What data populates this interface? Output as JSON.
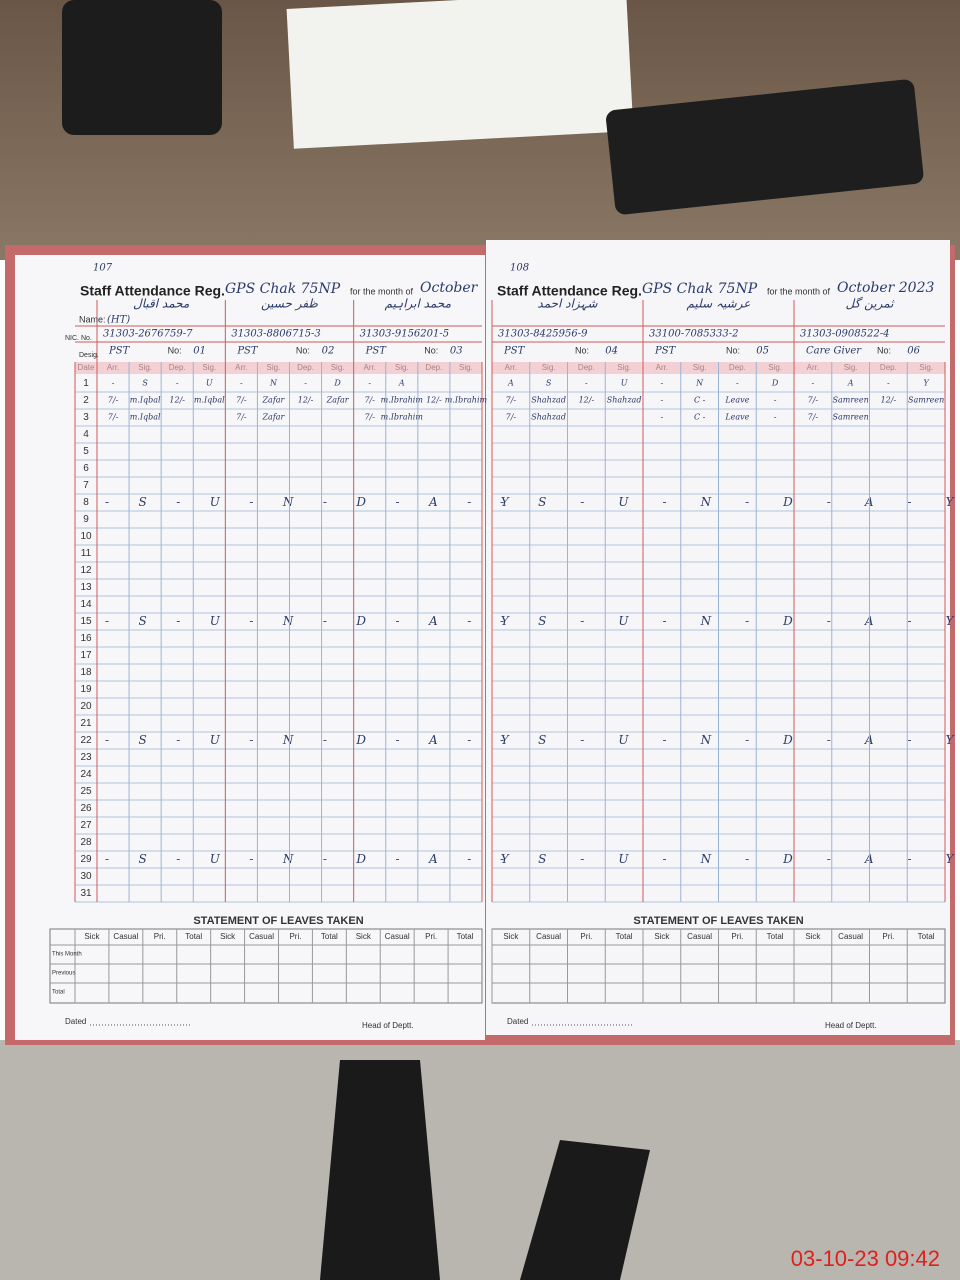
{
  "left_page": {
    "page_no": "107",
    "title": "Staff Attendance Reg.",
    "school": "GPS Chak 75NP",
    "month_label": "for the month of",
    "month": "October",
    "labels": {
      "name": "Name:",
      "nic": "NIC. No.",
      "desig": "Desig.",
      "no": "No:",
      "date": "Date",
      "arr": "Arr.",
      "sig": "Sig.",
      "dep": "Dep."
    },
    "staff": [
      {
        "urdu": "محمد اقبال",
        "name": "(HT)",
        "nic": "31303-2676759-7",
        "desig": "PST",
        "no": "01"
      },
      {
        "urdu": "ظفر حسین",
        "nic": "31303-8806715-3",
        "desig": "PST",
        "no": "02"
      },
      {
        "urdu": "محمد ابراہیم",
        "nic": "31303-9156201-5",
        "desig": "PST",
        "no": "03"
      }
    ],
    "rows": [
      {
        "day": "1",
        "cells": [
          "-",
          "S",
          "-",
          "U",
          "-",
          "N",
          "-",
          "D",
          "-",
          "A"
        ]
      },
      {
        "day": "2",
        "cells": [
          "7/-",
          "m.Iqbal",
          "12/-",
          "m.Iqbal",
          "7/-",
          "Zafar",
          "12/-",
          "Zafar",
          "7/-",
          "m.Ibrahim",
          "12/-",
          "m.Ibrahim"
        ]
      },
      {
        "day": "3",
        "cells": [
          "7/-",
          "m.Iqbal",
          null,
          null,
          "7/-",
          "Zafar",
          null,
          null,
          "7/-",
          "m.Ibrahim"
        ]
      },
      {
        "day": "4"
      },
      {
        "day": "5"
      },
      {
        "day": "6"
      },
      {
        "day": "7"
      },
      {
        "day": "8",
        "note": "- S - U - N - D - A - Y"
      },
      {
        "day": "9"
      },
      {
        "day": "10"
      },
      {
        "day": "11"
      },
      {
        "day": "12"
      },
      {
        "day": "13"
      },
      {
        "day": "14"
      },
      {
        "day": "15",
        "note": "- S - U - N - D - A - Y"
      },
      {
        "day": "16"
      },
      {
        "day": "17"
      },
      {
        "day": "18"
      },
      {
        "day": "19"
      },
      {
        "day": "20"
      },
      {
        "day": "21"
      },
      {
        "day": "22",
        "note": "- S - U - N - D - A - Y"
      },
      {
        "day": "23"
      },
      {
        "day": "24"
      },
      {
        "day": "25"
      },
      {
        "day": "26"
      },
      {
        "day": "27"
      },
      {
        "day": "28"
      },
      {
        "day": "29",
        "note": "- S - U - N - D - A - Y"
      },
      {
        "day": "30"
      },
      {
        "day": "31"
      }
    ],
    "leaves": {
      "title": "STATEMENT OF LEAVES TAKEN",
      "columns": [
        "Sick",
        "Casual",
        "Pri.",
        "Total"
      ],
      "rows": [
        "This Month",
        "Previous",
        "Total"
      ]
    },
    "footer": {
      "dated": "Dated",
      "head": "Head of Deptt."
    }
  },
  "right_page": {
    "page_no": "108",
    "title": "Staff Attendance Reg.",
    "school": "GPS Chak 75NP",
    "month_label": "for the month of",
    "month": "October 2023",
    "staff": [
      {
        "urdu": "شہزاد احمد",
        "nic": "31303-8425956-9",
        "desig": "PST",
        "no": "04"
      },
      {
        "urdu": "عرشیہ سلیم",
        "nic": "33100-7085333-2",
        "desig": "PST",
        "no": "05"
      },
      {
        "urdu": "ثمرین گل",
        "nic": "31303-0908522-4",
        "desig": "Care Giver",
        "no": "06"
      }
    ],
    "rows": [
      {
        "cells": [
          "A",
          "S",
          "-",
          "U",
          "-",
          "N",
          "-",
          "D",
          "-",
          "A",
          "-",
          "Y"
        ]
      },
      {
        "cells": [
          "7/-",
          "Shahzad",
          "12/-",
          "Shahzad",
          "-",
          "C -",
          "Leave",
          "-",
          "7/-",
          "Samreen",
          "12/-",
          "Samreen"
        ]
      },
      {
        "cells": [
          "7/-",
          "Shahzad",
          null,
          null,
          "-",
          "C -",
          "Leave",
          "-",
          "7/-",
          "Samreen"
        ]
      },
      null,
      null,
      null,
      null,
      {
        "note": "- S - U - N - D - A - Y"
      },
      null,
      null,
      null,
      null,
      null,
      null,
      {
        "note": "- S - U - N - D - A - Y"
      },
      null,
      null,
      null,
      null,
      null,
      null,
      {
        "note": "- S - U - N - D - A - Y"
      },
      null,
      null,
      null,
      null,
      null,
      null,
      {
        "note": "- S - U - N - D - A - Y"
      },
      null,
      null
    ],
    "footer": {
      "dated": "Dated",
      "head": "Head of Deptt."
    }
  },
  "timestamp": "03-10-23  09:42"
}
